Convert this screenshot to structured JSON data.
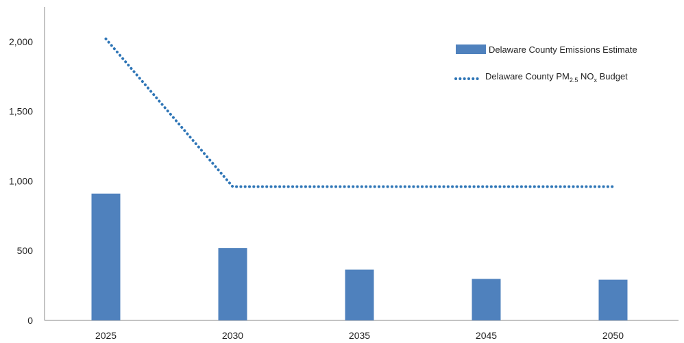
{
  "chart_data": {
    "type": "bar",
    "title": "",
    "xlabel": "",
    "ylabel": "",
    "categories": [
      "2025",
      "2030",
      "2035",
      "2045",
      "2050"
    ],
    "ylim": [
      0,
      2250
    ],
    "yticks": [
      0,
      500,
      1000,
      1500,
      2000
    ],
    "ytick_labels": [
      "0",
      "500",
      "1,000",
      "1,500",
      "2,000"
    ],
    "grid": false,
    "legend_position": "top-right",
    "series": [
      {
        "name": "Delaware County Emissions Estimate",
        "kind": "bar",
        "color": "#4f81bd",
        "values": [
          910,
          520,
          365,
          298,
          292
        ]
      },
      {
        "name": "Delaware County PM2.5 NOx Budget",
        "kind": "dotted-line",
        "color": "#2e75b6",
        "values": [
          2020,
          960,
          960,
          960,
          960
        ]
      }
    ],
    "legend": {
      "bar_label": "Delaware County Emissions Estimate",
      "line_label_prefix": "Delaware County PM",
      "line_label_sub1": "2.5",
      "line_label_mid": " NO",
      "line_label_sub2": "x",
      "line_label_suffix": " Budget"
    }
  }
}
